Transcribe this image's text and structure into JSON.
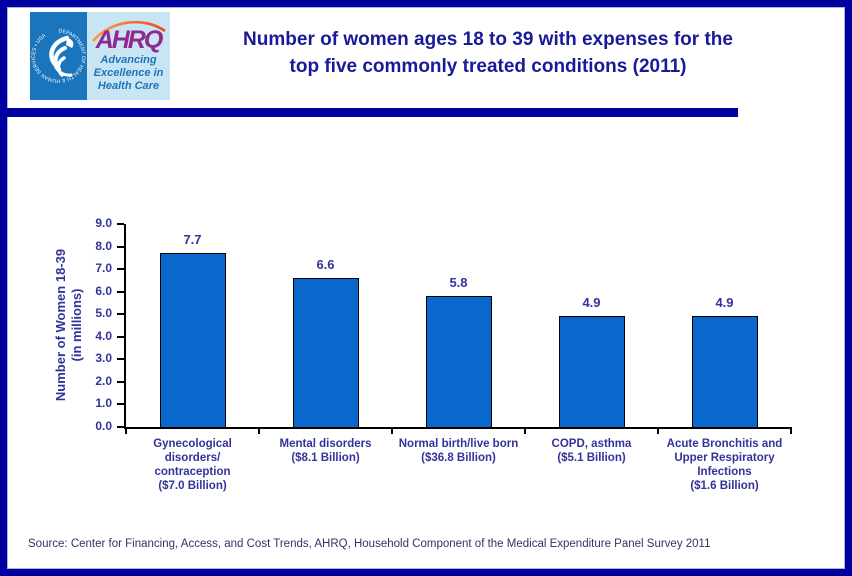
{
  "page": {
    "background": "#FFFFFF",
    "border_color": "#0000A0",
    "inner_line_color": "#A9B6DC"
  },
  "header": {
    "title_line1": "Number of women ages 18 to 39 with expenses for the",
    "title_line2": "top five commonly treated conditions (2011)",
    "title_color": "#1A1A99",
    "rule_color": "#0000A0",
    "logo": {
      "hhs_bg": "#1B75BC",
      "hhs_ring_text": "DEPARTMENT OF HEALTH & HUMAN SERVICES • USA",
      "ahrq_bg": "#C9E5F3",
      "acronym": "AHRQ",
      "acronym_color": "#92278F",
      "swoosh_color_start": "#F9A13A",
      "swoosh_color_end": "#E8482C",
      "tagline_line1": "Advancing",
      "tagline_line2": "Excellence in",
      "tagline_line3": "Health Care",
      "tagline_color": "#1B75BC"
    }
  },
  "chart_data": {
    "type": "bar",
    "title": "Number of women ages 18 to 39 with expenses for the top five commonly treated conditions (2011)",
    "categories": [
      "Gynecological disorders/contraception ($7.0 Billion)",
      "Mental disorders ($8.1 Billion)",
      "Normal birth/live born ($36.8 Billion)",
      "COPD, asthma ($5.1 Billion)",
      "Acute Bronchitis and Upper Respiratory Infections ($1.6 Billion)"
    ],
    "category_label_lines": [
      [
        "Gynecological",
        "disorders/",
        "contraception",
        "($7.0 Billion)"
      ],
      [
        "Mental disorders",
        "($8.1 Billion)"
      ],
      [
        "Normal birth/live born",
        "($36.8 Billion)"
      ],
      [
        "COPD, asthma",
        "($5.1 Billion)"
      ],
      [
        "Acute Bronchitis and",
        "Upper Respiratory",
        "Infections",
        "($1.6 Billion)"
      ]
    ],
    "values": [
      7.7,
      6.6,
      5.8,
      4.9,
      4.9
    ],
    "value_labels": [
      "7.7",
      "6.6",
      "5.8",
      "4.9",
      "4.9"
    ],
    "ylabel_line1": "Number of Women 18-39",
    "ylabel_line2": "(in millions)",
    "yticks": [
      "9.0",
      "8.0",
      "7.0",
      "6.0",
      "5.0",
      "4.0",
      "3.0",
      "2.0",
      "1.0",
      "0.0"
    ],
    "ylim": [
      0,
      9
    ],
    "grid": false,
    "legend": null,
    "bar_color": "#0A68CD",
    "bar_border_color": "#000000",
    "axis_color": "#000000",
    "label_color": "#333399"
  },
  "footer": {
    "source": "Source: Center for Financing, Access, and Cost Trends, AHRQ, Household Component of the Medical Expenditure Panel Survey 2011",
    "color": "#333366"
  }
}
